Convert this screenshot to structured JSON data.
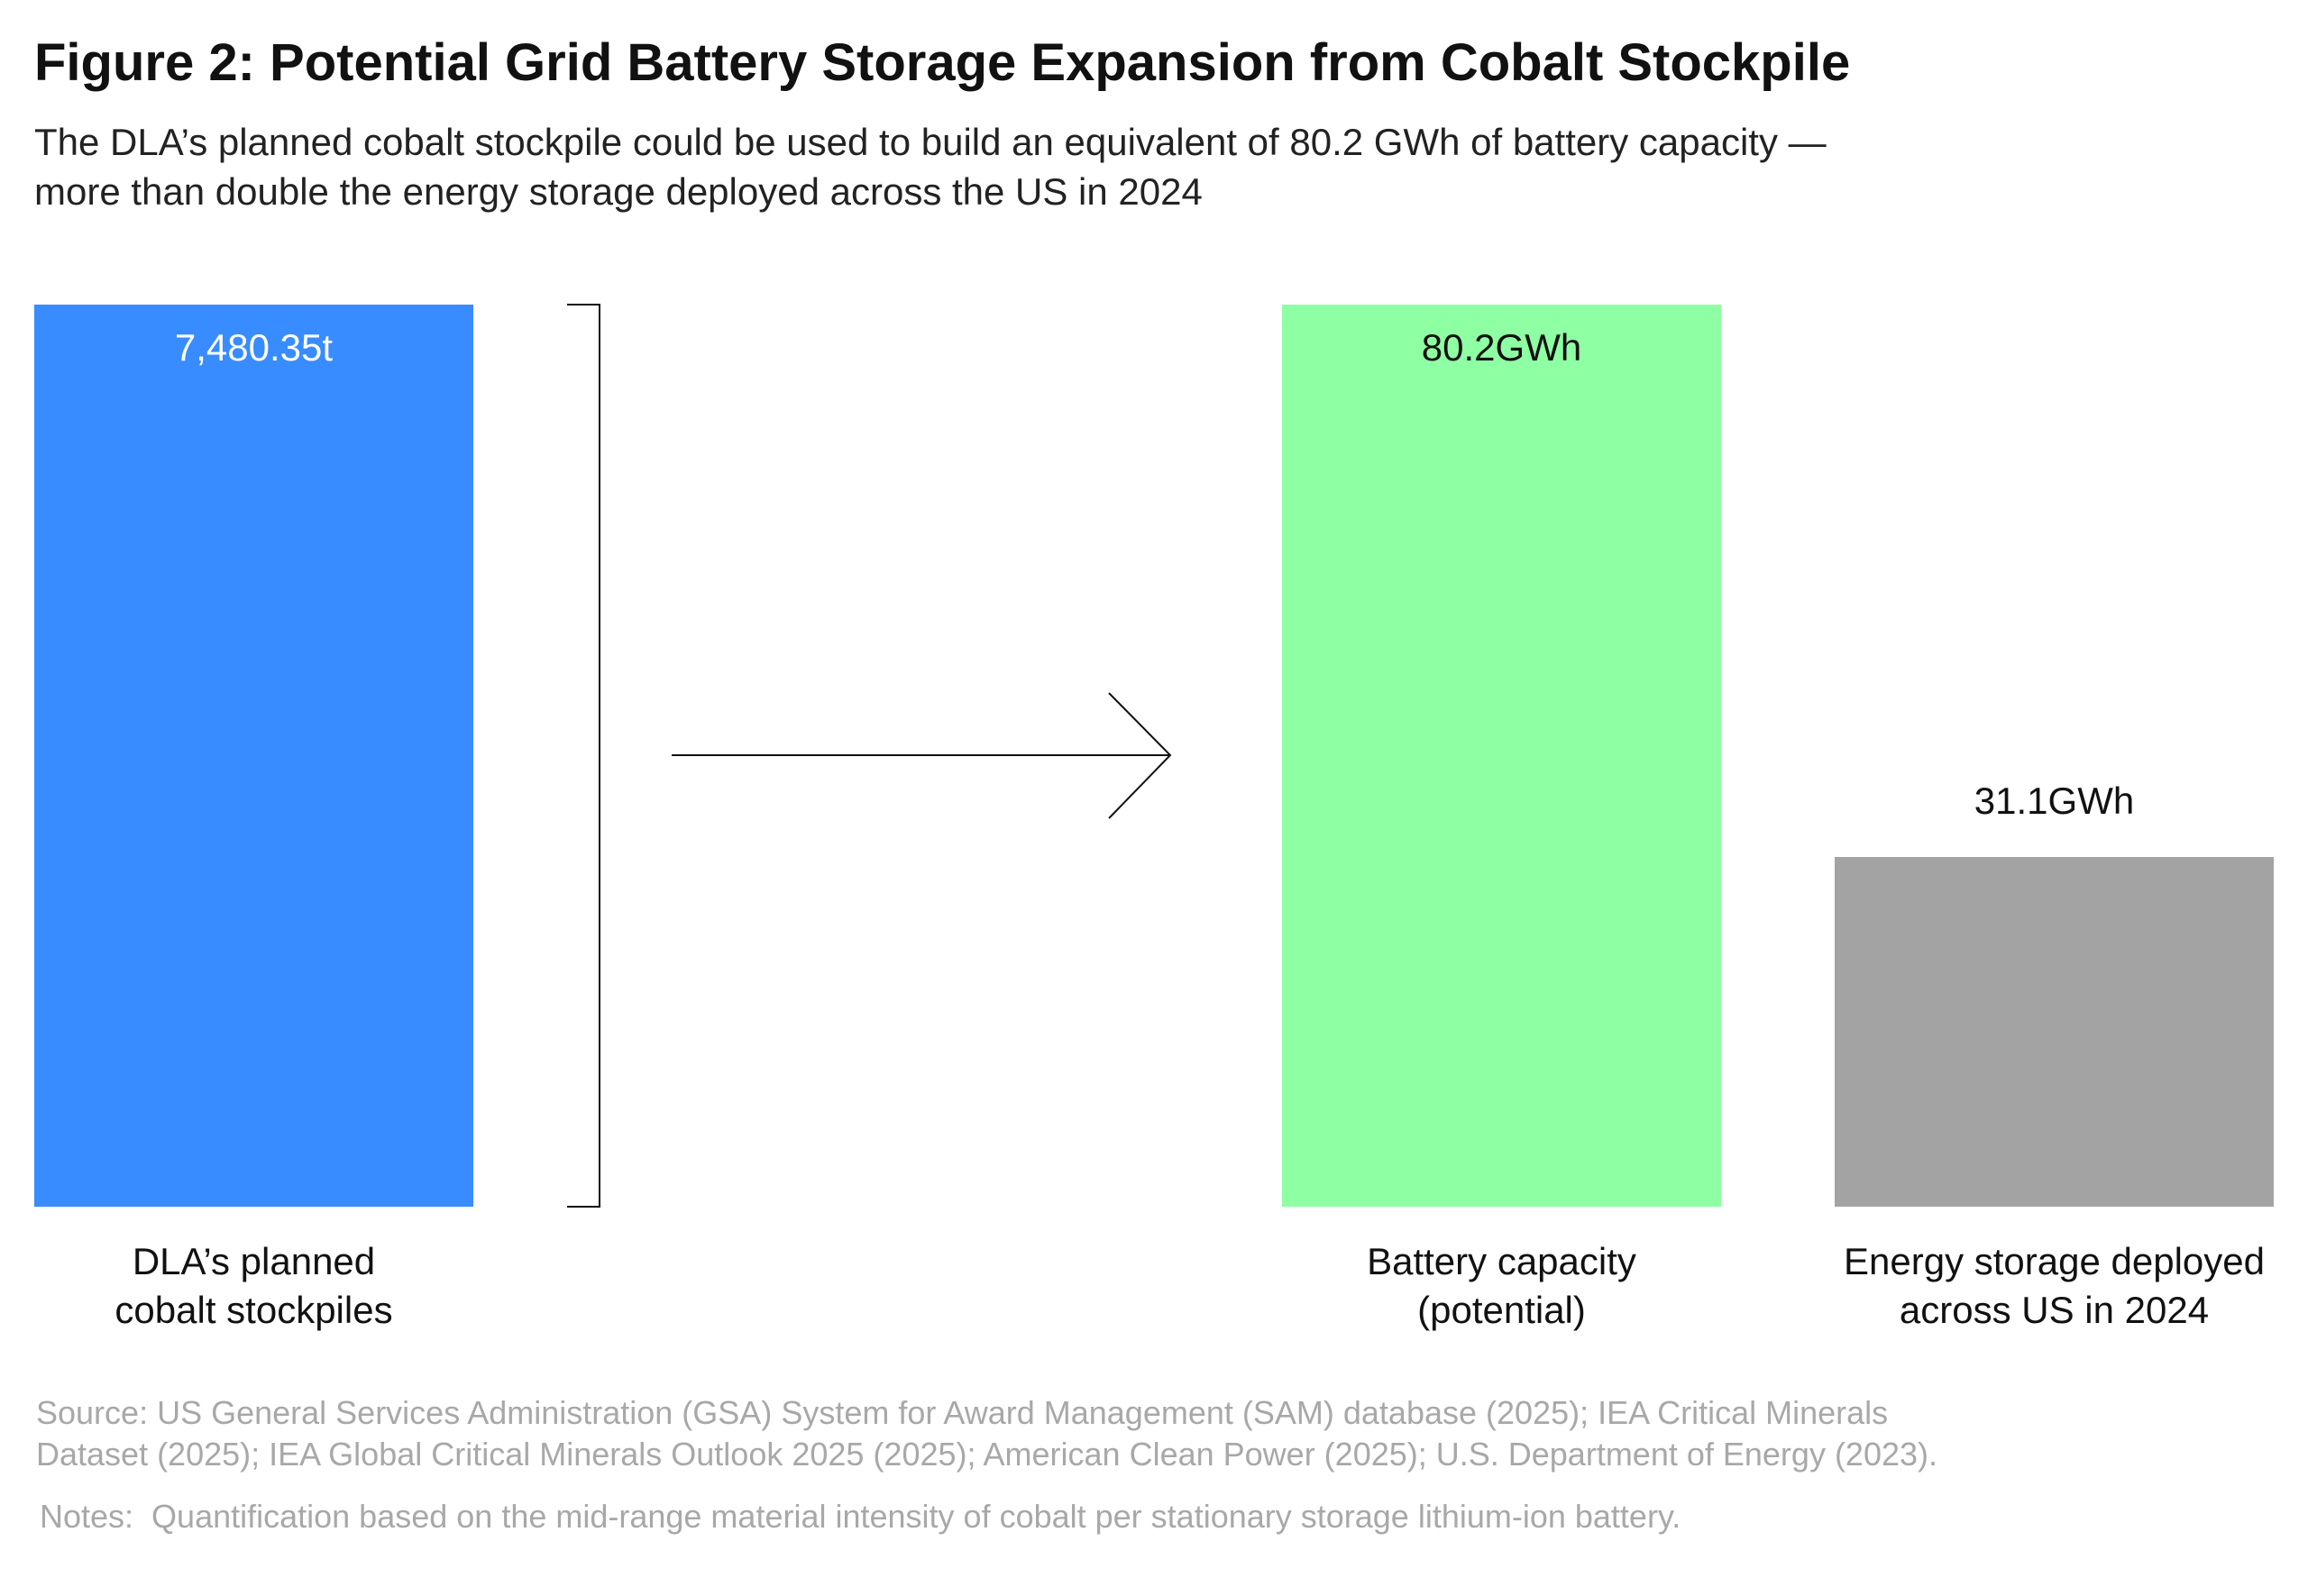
{
  "title": "Figure 2: Potential Grid Battery Storage Expansion from Cobalt Stockpile",
  "subtitle": "The DLA’s planned cobalt stockpile could be used to build an equivalent of 80.2 GWh of battery capacity —\nmore than double the energy storage deployed across the US in 2024",
  "chart_data": [
    {
      "type": "bar",
      "categories": [
        "DLA’s planned\ncobalt stockpiles"
      ],
      "values": [
        7480.35
      ],
      "value_labels": [
        "7,480.35t"
      ],
      "colors": [
        "#388cff"
      ]
    },
    {
      "type": "bar",
      "categories": [
        "Battery capacity\n(potential)",
        "Energy storage deployed\nacross US in 2024"
      ],
      "values": [
        80.2,
        31.1
      ],
      "value_labels": [
        "80.2GWh",
        "31.1GWh"
      ],
      "colors": [
        "#8fffa3",
        "#a3a3a3"
      ]
    }
  ],
  "source": "Source: US General Services Administration (GSA) System for Award Management (SAM) database (2025); IEA Critical Minerals\nDataset (2025); IEA Global Critical Minerals Outlook 2025 (2025); American Clean Power (2025); U.S. Department of Energy (2023).",
  "notes": "Notes:  Quantification based on the mid-range material intensity of cobalt per stationary storage lithium-ion battery."
}
